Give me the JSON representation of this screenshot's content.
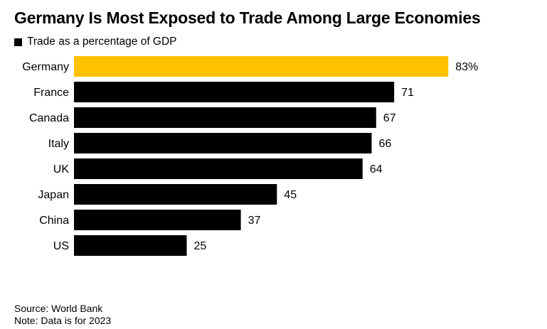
{
  "chart_data": {
    "type": "bar",
    "orientation": "horizontal",
    "title": "Germany Is Most Exposed to Trade Among Large Economies",
    "legend": [
      {
        "label": "Trade as a percentage of GDP",
        "color": "#000000"
      }
    ],
    "categories": [
      "Germany",
      "France",
      "Canada",
      "Italy",
      "UK",
      "Japan",
      "China",
      "US"
    ],
    "series": [
      {
        "name": "Trade as a percentage of GDP",
        "values": [
          83,
          71,
          67,
          66,
          64,
          45,
          37,
          25
        ]
      }
    ],
    "value_labels": [
      "83%",
      "71",
      "67",
      "66",
      "64",
      "45",
      "37",
      "25"
    ],
    "highlight": {
      "category": "Germany",
      "color": "#FFC000"
    },
    "bar_color": "#000000",
    "xlim": [
      0,
      100
    ],
    "grid": false,
    "legend_position": "top-left"
  },
  "footer": {
    "source": "Source: World Bank",
    "note": "Note: Data is for 2023"
  }
}
